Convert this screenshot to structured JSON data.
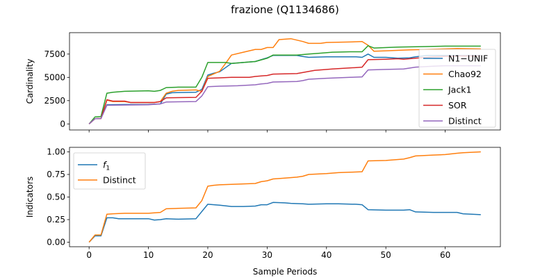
{
  "title": "frazione (Q1134686)",
  "chart_data": [
    {
      "type": "line",
      "ylabel": "Cardinality",
      "xlabel": "",
      "xlim": [
        -3.3,
        69.3
      ],
      "ylim": [
        -650,
        9800
      ],
      "xticks": [
        0,
        10,
        20,
        30,
        40,
        50,
        60
      ],
      "show_xticklabels": false,
      "yticks": [
        0,
        2500,
        5000,
        7500
      ],
      "ytick_labels": [
        "0",
        "2500",
        "5000",
        "7500"
      ],
      "legend_position": "right",
      "series": [
        {
          "name": "N1−UNIF",
          "color": "#1f77b4",
          "points": [
            [
              0,
              0
            ],
            [
              1,
              560
            ],
            [
              2,
              580
            ],
            [
              3,
              2060
            ],
            [
              6,
              2080
            ],
            [
              10,
              2100
            ],
            [
              12,
              2150
            ],
            [
              13,
              3200
            ],
            [
              14,
              3350
            ],
            [
              18,
              3400
            ],
            [
              19,
              3700
            ],
            [
              20,
              5250
            ],
            [
              21,
              5450
            ],
            [
              22,
              5600
            ],
            [
              24,
              6500
            ],
            [
              28,
              6700
            ],
            [
              30,
              7100
            ],
            [
              31,
              7350
            ],
            [
              35,
              7350
            ],
            [
              36,
              7250
            ],
            [
              37,
              7150
            ],
            [
              40,
              7200
            ],
            [
              45,
              7200
            ],
            [
              46,
              7150
            ],
            [
              47,
              7500
            ],
            [
              48,
              7150
            ],
            [
              50,
              7150
            ],
            [
              52,
              7050
            ],
            [
              54,
              7100
            ],
            [
              55,
              7200
            ],
            [
              57,
              7350
            ],
            [
              66,
              7350
            ]
          ]
        },
        {
          "name": "Chao92",
          "color": "#ff7f0e",
          "points": [
            [
              0,
              0
            ],
            [
              1,
              560
            ],
            [
              2,
              580
            ],
            [
              3,
              2560
            ],
            [
              4,
              2400
            ],
            [
              6,
              2400
            ],
            [
              7,
              2300
            ],
            [
              11,
              2300
            ],
            [
              12,
              2400
            ],
            [
              13,
              3300
            ],
            [
              14,
              3500
            ],
            [
              15,
              3600
            ],
            [
              18,
              3650
            ],
            [
              19,
              3500
            ],
            [
              20,
              5100
            ],
            [
              22,
              5650
            ],
            [
              23,
              6500
            ],
            [
              24,
              7400
            ],
            [
              26,
              7700
            ],
            [
              28,
              8000
            ],
            [
              29,
              8000
            ],
            [
              30,
              8200
            ],
            [
              31,
              8200
            ],
            [
              32,
              9050
            ],
            [
              34,
              9150
            ],
            [
              35,
              9000
            ],
            [
              36,
              8850
            ],
            [
              37,
              8650
            ],
            [
              39,
              8650
            ],
            [
              40,
              8750
            ],
            [
              44,
              8800
            ],
            [
              46,
              8850
            ],
            [
              47,
              8450
            ],
            [
              48,
              7800
            ],
            [
              50,
              7850
            ],
            [
              54,
              7950
            ],
            [
              57,
              8000
            ],
            [
              60,
              8050
            ],
            [
              62,
              8100
            ],
            [
              66,
              8050
            ]
          ]
        },
        {
          "name": "Jack1",
          "color": "#2ca02c",
          "points": [
            [
              0,
              0
            ],
            [
              1,
              750
            ],
            [
              2,
              800
            ],
            [
              3,
              3300
            ],
            [
              4,
              3400
            ],
            [
              6,
              3500
            ],
            [
              8,
              3530
            ],
            [
              10,
              3560
            ],
            [
              11,
              3500
            ],
            [
              12,
              3600
            ],
            [
              13,
              3900
            ],
            [
              15,
              3950
            ],
            [
              18,
              3950
            ],
            [
              19,
              5000
            ],
            [
              20,
              6600
            ],
            [
              23,
              6600
            ],
            [
              24,
              6500
            ],
            [
              26,
              6600
            ],
            [
              28,
              6700
            ],
            [
              30,
              7050
            ],
            [
              31,
              7400
            ],
            [
              33,
              7400
            ],
            [
              35,
              7400
            ],
            [
              37,
              7500
            ],
            [
              39,
              7600
            ],
            [
              41,
              7700
            ],
            [
              44,
              7750
            ],
            [
              46,
              7750
            ],
            [
              47,
              8400
            ],
            [
              48,
              8150
            ],
            [
              52,
              8250
            ],
            [
              56,
              8300
            ],
            [
              60,
              8350
            ],
            [
              66,
              8350
            ]
          ]
        },
        {
          "name": "SOR",
          "color": "#d62728",
          "points": [
            [
              0,
              0
            ],
            [
              1,
              560
            ],
            [
              2,
              580
            ],
            [
              3,
              2600
            ],
            [
              4,
              2450
            ],
            [
              6,
              2450
            ],
            [
              7,
              2300
            ],
            [
              11,
              2300
            ],
            [
              12,
              2400
            ],
            [
              13,
              2800
            ],
            [
              18,
              2850
            ],
            [
              19,
              3500
            ],
            [
              20,
              4900
            ],
            [
              22,
              4950
            ],
            [
              24,
              5000
            ],
            [
              27,
              5000
            ],
            [
              28,
              5100
            ],
            [
              30,
              5200
            ],
            [
              31,
              5350
            ],
            [
              35,
              5400
            ],
            [
              38,
              5750
            ],
            [
              41,
              5900
            ],
            [
              45,
              6050
            ],
            [
              46,
              6100
            ],
            [
              47,
              6900
            ],
            [
              50,
              6950
            ],
            [
              52,
              7000
            ],
            [
              53,
              6950
            ],
            [
              55,
              7050
            ],
            [
              58,
              7200
            ],
            [
              62,
              7300
            ],
            [
              66,
              7300
            ]
          ]
        },
        {
          "name": "Distinct",
          "color": "#9467bd",
          "points": [
            [
              0,
              0
            ],
            [
              1,
              560
            ],
            [
              2,
              580
            ],
            [
              3,
              2000
            ],
            [
              6,
              2030
            ],
            [
              10,
              2050
            ],
            [
              12,
              2150
            ],
            [
              13,
              2350
            ],
            [
              18,
              2400
            ],
            [
              19,
              3000
            ],
            [
              20,
              4000
            ],
            [
              22,
              4050
            ],
            [
              25,
              4100
            ],
            [
              28,
              4200
            ],
            [
              29,
              4300
            ],
            [
              30,
              4350
            ],
            [
              31,
              4500
            ],
            [
              35,
              4550
            ],
            [
              36,
              4650
            ],
            [
              37,
              4800
            ],
            [
              40,
              4900
            ],
            [
              44,
              5000
            ],
            [
              46,
              5050
            ],
            [
              47,
              5800
            ],
            [
              50,
              5850
            ],
            [
              53,
              5900
            ],
            [
              55,
              6100
            ],
            [
              58,
              6200
            ],
            [
              60,
              6250
            ],
            [
              66,
              6250
            ]
          ]
        }
      ]
    },
    {
      "type": "line",
      "ylabel": "Indicators",
      "xlabel": "Sample Periods",
      "xlim": [
        -3.3,
        69.3
      ],
      "ylim": [
        -0.05,
        1.05
      ],
      "xticks": [
        0,
        10,
        20,
        30,
        40,
        50,
        60
      ],
      "xtick_labels": [
        "0",
        "10",
        "20",
        "30",
        "40",
        "50",
        "60"
      ],
      "show_xticklabels": true,
      "yticks": [
        0,
        0.25,
        0.5,
        0.75,
        1.0
      ],
      "ytick_labels": [
        "0.00",
        "0.25",
        "0.50",
        "0.75",
        "1.00"
      ],
      "legend_position": "upper left",
      "series": [
        {
          "name": "f1",
          "color": "#1f77b4",
          "points": [
            [
              0,
              0
            ],
            [
              1,
              0.07
            ],
            [
              2,
              0.07
            ],
            [
              3,
              0.27
            ],
            [
              4,
              0.27
            ],
            [
              5,
              0.26
            ],
            [
              10,
              0.26
            ],
            [
              11,
              0.245
            ],
            [
              12,
              0.25
            ],
            [
              13,
              0.26
            ],
            [
              15,
              0.255
            ],
            [
              18,
              0.26
            ],
            [
              20,
              0.42
            ],
            [
              22,
              0.41
            ],
            [
              24,
              0.395
            ],
            [
              26,
              0.395
            ],
            [
              28,
              0.4
            ],
            [
              29,
              0.415
            ],
            [
              30,
              0.415
            ],
            [
              31,
              0.44
            ],
            [
              33,
              0.435
            ],
            [
              34,
              0.43
            ],
            [
              36,
              0.425
            ],
            [
              37,
              0.42
            ],
            [
              40,
              0.425
            ],
            [
              42,
              0.425
            ],
            [
              45,
              0.42
            ],
            [
              46,
              0.415
            ],
            [
              47,
              0.36
            ],
            [
              50,
              0.355
            ],
            [
              53,
              0.355
            ],
            [
              54,
              0.36
            ],
            [
              55,
              0.335
            ],
            [
              58,
              0.33
            ],
            [
              62,
              0.33
            ],
            [
              63,
              0.315
            ],
            [
              66,
              0.305
            ]
          ]
        },
        {
          "name": "Distinct",
          "color": "#ff7f0e",
          "points": [
            [
              0,
              0
            ],
            [
              1,
              0.08
            ],
            [
              2,
              0.08
            ],
            [
              3,
              0.31
            ],
            [
              4,
              0.315
            ],
            [
              6,
              0.32
            ],
            [
              10,
              0.32
            ],
            [
              11,
              0.325
            ],
            [
              12,
              0.33
            ],
            [
              13,
              0.37
            ],
            [
              15,
              0.375
            ],
            [
              18,
              0.38
            ],
            [
              19,
              0.46
            ],
            [
              20,
              0.62
            ],
            [
              21,
              0.63
            ],
            [
              22,
              0.635
            ],
            [
              24,
              0.64
            ],
            [
              26,
              0.645
            ],
            [
              28,
              0.65
            ],
            [
              29,
              0.67
            ],
            [
              30,
              0.68
            ],
            [
              31,
              0.7
            ],
            [
              33,
              0.71
            ],
            [
              35,
              0.72
            ],
            [
              36,
              0.73
            ],
            [
              37,
              0.75
            ],
            [
              40,
              0.76
            ],
            [
              42,
              0.77
            ],
            [
              44,
              0.775
            ],
            [
              46,
              0.78
            ],
            [
              47,
              0.9
            ],
            [
              50,
              0.905
            ],
            [
              53,
              0.92
            ],
            [
              54,
              0.935
            ],
            [
              55,
              0.955
            ],
            [
              58,
              0.965
            ],
            [
              60,
              0.97
            ],
            [
              62,
              0.985
            ],
            [
              63,
              0.99
            ],
            [
              66,
              1.0
            ]
          ]
        }
      ]
    }
  ]
}
